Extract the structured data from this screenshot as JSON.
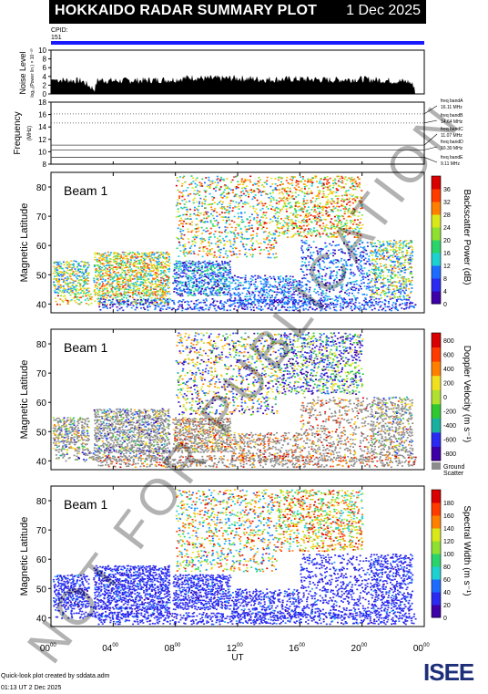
{
  "header": {
    "title": "HOKKAIDO RADAR SUMMARY PLOT",
    "date": "1 Dec 2025"
  },
  "cpid": {
    "label": "CPID:",
    "value": "151"
  },
  "footer": {
    "line1": "Quick-look plot created by sddata.adm",
    "line2": "01:13 UT  2 Dec 2025"
  },
  "watermark": "NOT FOR PUBLICATION",
  "logo": {
    "text": "ISEE",
    "colors": [
      "#1e2f7a",
      "#2a9d3c"
    ]
  },
  "chart_data": [
    {
      "type": "area",
      "id": "noise",
      "ylabel": "Noise Level",
      "ysublabel": "log₁₀(Power lin.) × 10⁻³⁰",
      "yticks": [
        0,
        2,
        4,
        6,
        8,
        10
      ],
      "ylim": [
        0,
        10
      ],
      "x": [
        0,
        2,
        2.8,
        3,
        4,
        6,
        8,
        9,
        10,
        12,
        14,
        16,
        18,
        20,
        22,
        23,
        24
      ],
      "values": [
        3.3,
        3.0,
        1.0,
        3.2,
        3.0,
        3.1,
        3.3,
        3.8,
        3.5,
        3.6,
        3.3,
        3.4,
        3.2,
        3.4,
        3.0,
        2.8,
        0
      ]
    },
    {
      "type": "line",
      "id": "frequency",
      "ylabel": "Frequency",
      "yunit": "(MHz)",
      "yticks": [
        8,
        10,
        12,
        14,
        16,
        18
      ],
      "ylim": [
        8,
        18
      ],
      "bands": [
        {
          "name": "freq bandA",
          "mhz": 16.11,
          "label": "16.11 MHz"
        },
        {
          "name": "freq bandB",
          "mhz": 14.64,
          "label": "14.64 MHz"
        },
        {
          "name": "freq bandC",
          "mhz": 11.07,
          "label": "11.07 MHz"
        },
        {
          "name": "freq bandD",
          "mhz": 10.3,
          "label": "10.30 MHz"
        },
        {
          "name": "freq bandE",
          "mhz": 9.11,
          "label": "9.11 MHz"
        }
      ]
    },
    {
      "type": "heatmap",
      "id": "power",
      "beam_label": "Beam  1",
      "ylabel": "Magnetic Latitude",
      "yticks": [
        40,
        50,
        60,
        70,
        80
      ],
      "ylim": [
        37,
        85
      ],
      "colorbar": {
        "label": "Backscatter Power (dB)",
        "ticks": [
          0,
          4,
          8,
          12,
          16,
          20,
          24,
          28,
          32,
          36
        ]
      }
    },
    {
      "type": "heatmap",
      "id": "velocity",
      "beam_label": "Beam  1",
      "ylabel": "Magnetic Latitude",
      "yticks": [
        40,
        50,
        60,
        70,
        80
      ],
      "ylim": [
        37,
        85
      ],
      "colorbar": {
        "label": "Doppler Velocity (m s⁻¹)",
        "ticks": [
          800,
          600,
          400,
          200,
          0,
          -200,
          -400,
          -600,
          -800
        ]
      },
      "ground_scatter_label": [
        "Ground",
        "Scatter"
      ]
    },
    {
      "type": "heatmap",
      "id": "width",
      "beam_label": "Beam  1",
      "ylabel": "Magnetic Latitude",
      "yticks": [
        40,
        50,
        60,
        70,
        80
      ],
      "ylim": [
        37,
        85
      ],
      "colorbar": {
        "label": "Spectral Width (m s⁻¹)",
        "ticks": [
          0,
          20,
          40,
          60,
          80,
          100,
          120,
          140,
          160,
          180
        ]
      }
    }
  ],
  "xaxis": {
    "label": "UT",
    "ticks": [
      "00",
      "04",
      "08",
      "12",
      "16",
      "20",
      "00"
    ],
    "tick_suffix": "00",
    "xlim": [
      0,
      24
    ]
  }
}
